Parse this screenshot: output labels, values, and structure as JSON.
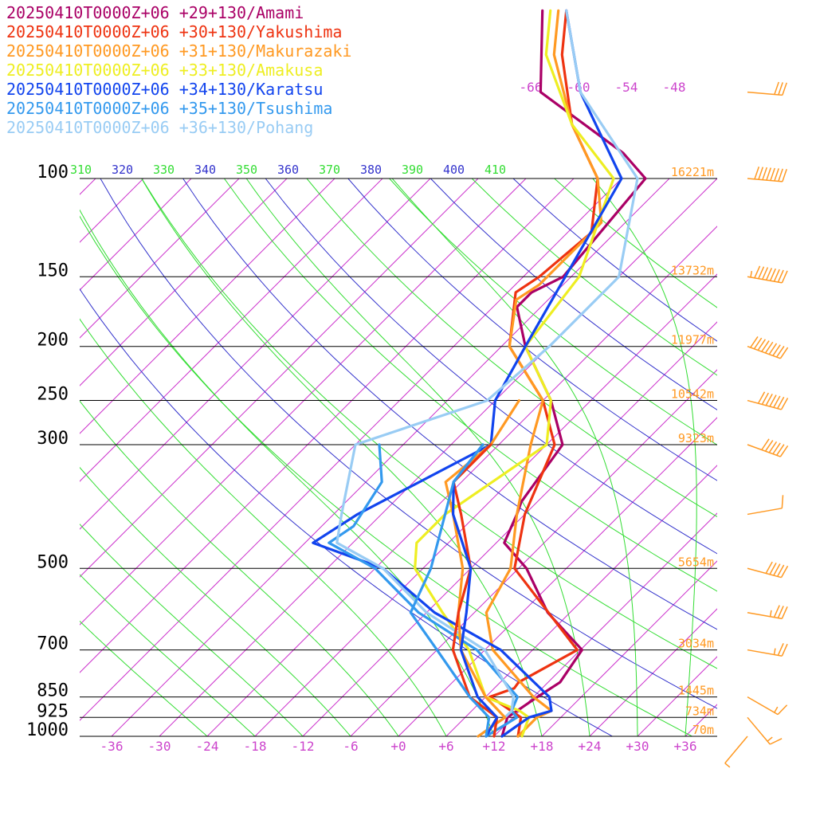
{
  "chart_data": {
    "type": "line",
    "title": "",
    "xlabel": "",
    "ylabel": "",
    "legend_position": "top-left",
    "legend": [
      {
        "label": "20250410T0000Z+06 +29+130/Amami",
        "color": "#aa0066"
      },
      {
        "label": "20250410T0000Z+06 +30+130/Yakushima",
        "color": "#ee3311"
      },
      {
        "label": "20250410T0000Z+06 +31+130/Makurazaki",
        "color": "#ff9922"
      },
      {
        "label": "20250410T0000Z+06 +33+130/Amakusa",
        "color": "#eeee22"
      },
      {
        "label": "20250410T0000Z+06 +34+130/Karatsu",
        "color": "#1144ee"
      },
      {
        "label": "20250410T0000Z+06 +35+130/Tsushima",
        "color": "#3399ee"
      },
      {
        "label": "20250410T0000Z+06 +36+130/Pohang",
        "color": "#99ccf4"
      }
    ],
    "pressure_levels": [
      {
        "label": "100",
        "p": 100
      },
      {
        "label": "150",
        "p": 150
      },
      {
        "label": "200",
        "p": 200
      },
      {
        "label": "250",
        "p": 250
      },
      {
        "label": "300",
        "p": 300
      },
      {
        "label": "500",
        "p": 500
      },
      {
        "label": "700",
        "p": 700
      },
      {
        "label": "850",
        "p": 850
      },
      {
        "label": "925",
        "p": 925
      },
      {
        "label": "1000",
        "p": 1000
      }
    ],
    "height_labels": [
      {
        "p": 100,
        "label": "16221m"
      },
      {
        "p": 150,
        "label": "13732m"
      },
      {
        "p": 200,
        "label": "11977m"
      },
      {
        "p": 250,
        "label": "10542m"
      },
      {
        "p": 300,
        "label": "9323m"
      },
      {
        "p": 500,
        "label": "5654m"
      },
      {
        "p": 700,
        "label": "3034m"
      },
      {
        "p": 850,
        "label": "1445m"
      },
      {
        "p": 925,
        "label": "734m"
      },
      {
        "p": 1000,
        "label": "70m"
      }
    ],
    "x_ticks": [
      {
        "v": -36,
        "label": "-36"
      },
      {
        "v": -30,
        "label": "-30"
      },
      {
        "v": -24,
        "label": "-24"
      },
      {
        "v": -18,
        "label": "-18"
      },
      {
        "v": -12,
        "label": "-12"
      },
      {
        "v": -6,
        "label": "-6"
      },
      {
        "v": 0,
        "label": "+0"
      },
      {
        "v": 6,
        "label": "+6"
      },
      {
        "v": 12,
        "label": "+12"
      },
      {
        "v": 18,
        "label": "+18"
      },
      {
        "v": 24,
        "label": "+24"
      },
      {
        "v": 30,
        "label": "+30"
      },
      {
        "v": 36,
        "label": "+36"
      }
    ],
    "top_isotherm_labels": [
      {
        "v": -66,
        "label": "-66"
      },
      {
        "v": -60,
        "label": "-60"
      },
      {
        "v": -54,
        "label": "-54"
      },
      {
        "v": -48,
        "label": "-48"
      }
    ],
    "theta_labels": [
      {
        "theta": 310,
        "label": "310",
        "color": "#33dd33"
      },
      {
        "theta": 320,
        "label": "320",
        "color": "#3333cc"
      },
      {
        "theta": 330,
        "label": "330",
        "color": "#33dd33"
      },
      {
        "theta": 340,
        "label": "340",
        "color": "#3333cc"
      },
      {
        "theta": 350,
        "label": "350",
        "color": "#33dd33"
      },
      {
        "theta": 360,
        "label": "360",
        "color": "#3333cc"
      },
      {
        "theta": 370,
        "label": "370",
        "color": "#33dd33"
      },
      {
        "theta": 380,
        "label": "380",
        "color": "#3333cc"
      },
      {
        "theta": 390,
        "label": "390",
        "color": "#33dd33"
      },
      {
        "theta": 400,
        "label": "400",
        "color": "#3333cc"
      },
      {
        "theta": 410,
        "label": "410",
        "color": "#33dd33"
      }
    ],
    "axis_ranges": {
      "x_temp_at_1000hPa": [
        -40,
        40
      ],
      "pressure_hPa": [
        100,
        1000
      ],
      "pressure_scale": "log"
    },
    "isotherm_spacing_c": 6,
    "dry_adiabats_theta_k": [
      300,
      310,
      320,
      330,
      340,
      350,
      360,
      370,
      380,
      390,
      400,
      410,
      420,
      430
    ],
    "moist_adiabats_temp_c": [
      -24,
      -18,
      -12,
      -6,
      0,
      6,
      12,
      18,
      24,
      30,
      36
    ],
    "grid": true,
    "colors": {
      "isotherm": "#cc33cc",
      "dry_adiabat": "#3333cc",
      "moist_adiabat": "#33dd33",
      "isobar": "#000000",
      "height_label": "#ff9922",
      "wind_barb": "#ff9922",
      "tick_label": "#cc44cc"
    },
    "series": [
      {
        "name": "20250410T0000Z+06 +29+130/Amami",
        "color": "#aa0066",
        "points": [
          [
            1000,
            13
          ],
          [
            925,
            11.3
          ],
          [
            850,
            12.5
          ],
          [
            800,
            13.5
          ],
          [
            700,
            12.2
          ],
          [
            600,
            3.2
          ],
          [
            500,
            -5
          ],
          [
            450,
            -11
          ],
          [
            400,
            -13
          ],
          [
            380,
            -14
          ],
          [
            300,
            -16
          ],
          [
            250,
            -23
          ],
          [
            200,
            -33
          ],
          [
            170,
            -39
          ],
          [
            160,
            -39
          ],
          [
            150,
            -37
          ],
          [
            100,
            -39
          ],
          [
            90,
            -45
          ],
          [
            70,
            -63
          ],
          [
            50,
            -73
          ]
        ]
      },
      {
        "name": "20250410T0000Z+06 +30+130/Yakushima",
        "color": "#ee3311",
        "points": [
          [
            1000,
            15
          ],
          [
            925,
            13
          ],
          [
            860,
            7.5
          ],
          [
            850,
            6.5
          ],
          [
            820,
            8.5
          ],
          [
            800,
            8.3
          ],
          [
            700,
            11.6
          ],
          [
            600,
            3.3
          ],
          [
            500,
            -6.5
          ],
          [
            400,
            -12
          ],
          [
            300,
            -17
          ],
          [
            250,
            -24
          ],
          [
            200,
            -35
          ],
          [
            160,
            -41
          ],
          [
            150,
            -40
          ],
          [
            125,
            -39
          ],
          [
            100,
            -45
          ],
          [
            80,
            -55
          ],
          [
            60,
            -65
          ],
          [
            50,
            -70
          ]
        ]
      },
      {
        "name": "20250410T0000Z+06 +31+130/Makurazaki",
        "color": "#ff9922",
        "points": [
          [
            1000,
            15
          ],
          [
            925,
            15
          ],
          [
            900,
            16
          ],
          [
            850,
            12
          ],
          [
            700,
            1
          ],
          [
            600,
            -4.5
          ],
          [
            500,
            -7
          ],
          [
            400,
            -13
          ],
          [
            300,
            -20
          ],
          [
            250,
            -24
          ],
          [
            200,
            -35
          ],
          [
            165,
            -40
          ],
          [
            155,
            -39
          ],
          [
            120,
            -39
          ],
          [
            100,
            -45
          ],
          [
            80,
            -55
          ],
          [
            60,
            -66
          ],
          [
            50,
            -71
          ]
        ]
      },
      {
        "name": "20250410T0000Z+06 +33+130/Amakusa",
        "color": "#eeee22",
        "points": [
          [
            1000,
            15.5
          ],
          [
            925,
            14
          ],
          [
            900,
            12
          ],
          [
            850,
            6
          ],
          [
            700,
            -2
          ],
          [
            600,
            -10
          ],
          [
            500,
            -19
          ],
          [
            450,
            -22
          ],
          [
            400,
            -22
          ],
          [
            300,
            -18
          ],
          [
            250,
            -23
          ],
          [
            200,
            -33
          ],
          [
            150,
            -35
          ],
          [
            100,
            -43
          ],
          [
            80,
            -55
          ],
          [
            60,
            -67
          ],
          [
            50,
            -72
          ]
        ]
      },
      {
        "name": "20250410T0000Z+06 +34+130/Karatsu",
        "color": "#1144ee",
        "points": [
          [
            1000,
            13
          ],
          [
            925,
            14
          ],
          [
            900,
            16
          ],
          [
            850,
            14
          ],
          [
            700,
            2
          ],
          [
            600,
            -11
          ],
          [
            500,
            -23
          ],
          [
            450,
            -35
          ],
          [
            400,
            -33
          ],
          [
            300,
            -25
          ],
          [
            250,
            -30
          ],
          [
            200,
            -33
          ],
          [
            100,
            -42
          ],
          [
            70,
            -58
          ],
          [
            50,
            -70
          ]
        ]
      },
      {
        "name": "20250410T0000Z+06 +35+130/Tsushima",
        "color": "#3399ee",
        "points": [
          [
            1000,
            11
          ],
          [
            925,
            12.5
          ],
          [
            900,
            11
          ],
          [
            850,
            10
          ],
          [
            700,
            -1
          ],
          [
            600,
            -13
          ],
          [
            500,
            -24
          ],
          [
            450,
            -33
          ],
          [
            420,
            -32
          ],
          [
            350,
            -34
          ],
          [
            300,
            -39
          ]
        ]
      },
      {
        "name": "20250410T0000Z+06 +36+130/Pohang",
        "color": "#99ccf4",
        "points": [
          [
            1000,
            10
          ],
          [
            925,
            11
          ],
          [
            900,
            11
          ],
          [
            850,
            9.5
          ],
          [
            700,
            0
          ],
          [
            600,
            -12
          ],
          [
            500,
            -23
          ],
          [
            450,
            -32
          ],
          [
            400,
            -35
          ],
          [
            300,
            -42
          ],
          [
            250,
            -31
          ],
          [
            200,
            -30
          ],
          [
            150,
            -30
          ],
          [
            100,
            -40
          ],
          [
            70,
            -58
          ],
          [
            50,
            -70
          ]
        ]
      },
      {
        "name": "20250410T0000Z+06 +31+130/Makurazaki",
        "color": "#ff9922",
        "points": [
          [
            1000,
            10
          ],
          [
            925,
            11
          ],
          [
            850,
            6
          ],
          [
            700,
            -3
          ],
          [
            600,
            -8
          ],
          [
            500,
            -13
          ],
          [
            400,
            -21
          ],
          [
            350,
            -26
          ],
          [
            300,
            -25
          ],
          [
            250,
            -27
          ]
        ]
      },
      {
        "name": "20250410T0000Z+06 +30+130/Yakushima",
        "color": "#ee3311",
        "points": [
          [
            1000,
            12
          ],
          [
            925,
            10
          ],
          [
            850,
            4
          ],
          [
            700,
            -4
          ],
          [
            600,
            -8
          ],
          [
            500,
            -12
          ],
          [
            400,
            -20
          ],
          [
            350,
            -25
          ],
          [
            300,
            -25
          ]
        ]
      },
      {
        "name": "20250410T0000Z+06 +34+130/Karatsu",
        "color": "#1144ee",
        "points": [
          [
            1000,
            11
          ],
          [
            925,
            10
          ],
          [
            850,
            5
          ],
          [
            700,
            -3
          ],
          [
            600,
            -7
          ],
          [
            500,
            -12
          ],
          [
            400,
            -21
          ],
          [
            350,
            -25
          ],
          [
            300,
            -26
          ]
        ]
      },
      {
        "name": "20250410T0000Z+06 +35+130/Tsushima",
        "color": "#3399ee",
        "points": [
          [
            1000,
            11
          ],
          [
            925,
            9
          ],
          [
            850,
            4
          ],
          [
            700,
            -6
          ],
          [
            600,
            -14
          ],
          [
            500,
            -17
          ],
          [
            400,
            -22
          ],
          [
            350,
            -25
          ],
          [
            300,
            -26
          ]
        ]
      }
    ],
    "wind_barbs": [
      {
        "p": 70,
        "dir_deg": 275,
        "speed_kt": 30
      },
      {
        "p": 100,
        "dir_deg": 275,
        "speed_kt": 80
      },
      {
        "p": 150,
        "dir_deg": 280,
        "speed_kt": 85
      },
      {
        "p": 200,
        "dir_deg": 290,
        "speed_kt": 90
      },
      {
        "p": 250,
        "dir_deg": 285,
        "speed_kt": 70
      },
      {
        "p": 300,
        "dir_deg": 290,
        "speed_kt": 60
      },
      {
        "p": 400,
        "dir_deg": 260,
        "speed_kt": 10
      },
      {
        "p": 500,
        "dir_deg": 285,
        "speed_kt": 50
      },
      {
        "p": 600,
        "dir_deg": 280,
        "speed_kt": 35
      },
      {
        "p": 700,
        "dir_deg": 280,
        "speed_kt": 25
      },
      {
        "p": 850,
        "dir_deg": 300,
        "speed_kt": 15
      },
      {
        "p": 925,
        "dir_deg": 320,
        "speed_kt": 15
      },
      {
        "p": 1000,
        "dir_deg": 40,
        "speed_kt": 5
      }
    ]
  }
}
